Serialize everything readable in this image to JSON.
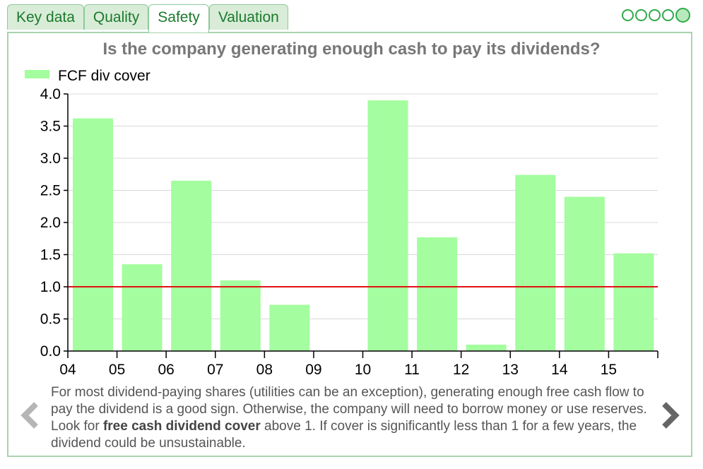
{
  "tabs": [
    {
      "label": "Key data",
      "active": false
    },
    {
      "label": "Quality",
      "active": false
    },
    {
      "label": "Safety",
      "active": true
    },
    {
      "label": "Valuation",
      "active": false
    }
  ],
  "page_dots": {
    "count": 5,
    "active_index": 4,
    "active_color": "#b7e9bd",
    "border_color": "#2eaa4a"
  },
  "chart_data": {
    "type": "bar",
    "title": "Is the company generating enough cash to pay its dividends?",
    "legend": {
      "label": "FCF div cover",
      "placement": "top-left"
    },
    "categories": [
      "04",
      "05",
      "06",
      "07",
      "08",
      "09",
      "10",
      "11",
      "12",
      "13",
      "14",
      "15"
    ],
    "series": [
      {
        "name": "FCF div cover",
        "color": "#a4fd9e",
        "values": [
          3.62,
          1.35,
          2.65,
          1.1,
          0.72,
          null,
          3.9,
          1.77,
          0.1,
          2.74,
          2.4,
          1.52
        ]
      }
    ],
    "ylim": [
      0,
      4
    ],
    "yticks": [
      "0.0",
      "0.5",
      "1.0",
      "1.5",
      "2.0",
      "2.5",
      "3.0",
      "3.5",
      "4.0"
    ],
    "reference_line": {
      "value": 1.0,
      "color": "#e21212"
    },
    "grid": true,
    "xlabel": "",
    "ylabel": ""
  },
  "description": {
    "before": "For most dividend-paying shares (utilities can be an exception), generating enough free cash flow to pay the dividend is a good sign. Otherwise, the company will need to borrow money or use reserves. Look for ",
    "bold": "free cash dividend cover",
    "after": " above 1. If cover is significantly less than 1 for a few years, the dividend could be unsustainable."
  },
  "nav": {
    "prev_icon": "chevron-left-icon",
    "next_icon": "chevron-right-icon"
  }
}
